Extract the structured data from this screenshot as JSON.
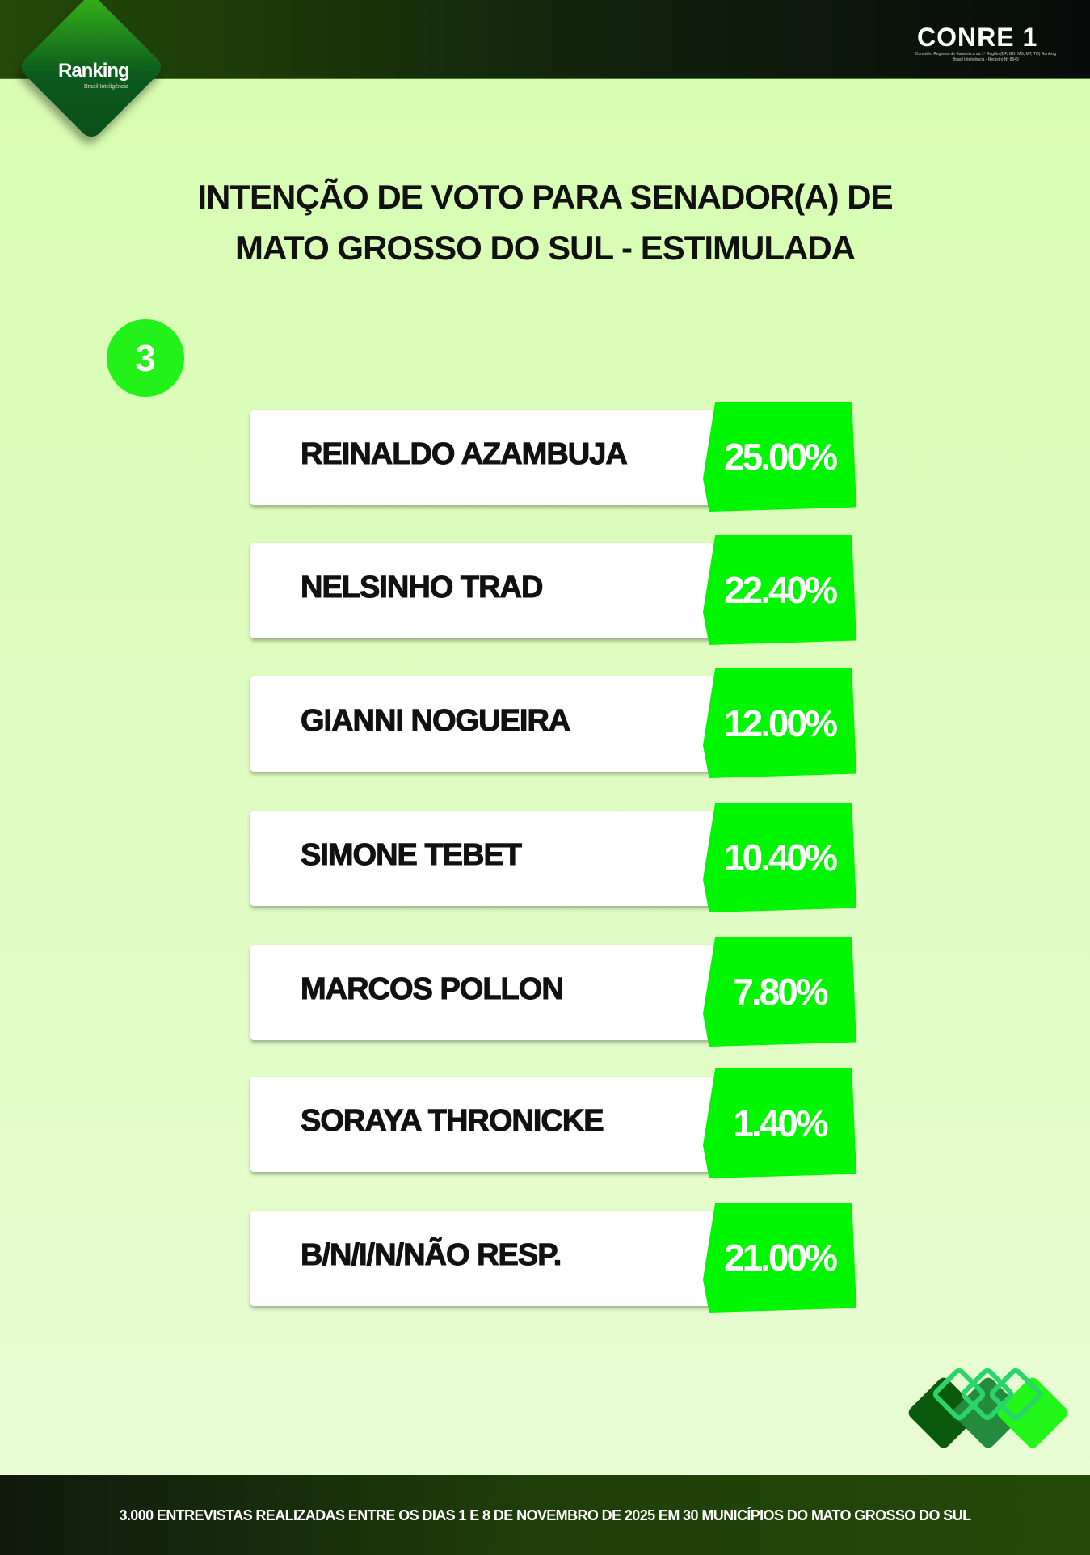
{
  "header": {
    "logo_text": "Ranking",
    "logo_sub": "Brasil Inteligência",
    "conre_title": "CONRE 1",
    "conre_sub": "Conselho Regional de Estatística da 1ª Região (DF, GO, MS, MT, TO) Ranking Brasil Inteligência - Registro Nº 8649"
  },
  "title": {
    "line1": "INTENÇÃO DE VOTO PARA SENADOR(A) DE",
    "line2": "MATO GROSSO DO SUL - ESTIMULADA"
  },
  "badge_number": "3",
  "results": [
    {
      "name": "REINALDO AZAMBUJA",
      "value": "25.00%"
    },
    {
      "name": "NELSINHO TRAD",
      "value": "22.40%"
    },
    {
      "name": "GIANNI NOGUEIRA",
      "value": "12.00%"
    },
    {
      "name": "SIMONE TEBET",
      "value": "10.40%"
    },
    {
      "name": "MARCOS POLLON",
      "value": "7.80%"
    },
    {
      "name": "SORAYA THRONICKE",
      "value": "1.40%"
    },
    {
      "name": "B/N/I/N/NÃO RESP.",
      "value": "21.00%"
    }
  ],
  "footer": "3.000 ENTREVISTAS REALIZADAS ENTRE OS DIAS 1 E 8 DE NOVEMBRO DE 2025 EM 30 MUNICÍPIOS DO MATO GROSSO DO SUL",
  "colors": {
    "accent": "#00f500",
    "header": "#234a08",
    "background": "#d6fdb0"
  }
}
